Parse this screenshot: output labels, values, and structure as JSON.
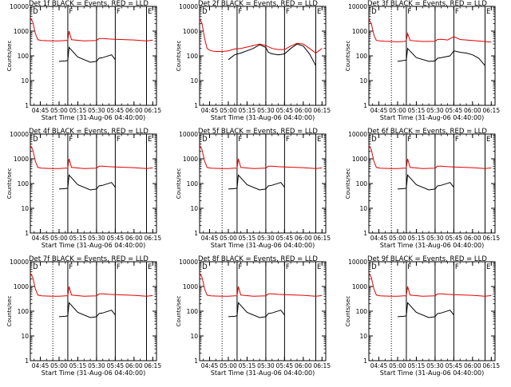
{
  "colors": {
    "events": "#000000",
    "lld": "#e00000",
    "axis": "#000000",
    "background": "#ffffff"
  },
  "chart_data": [
    {
      "type": "line",
      "title": "Det 1f BLACK = Events, RED = LLD",
      "xlabel": "Start Time (31-Aug-06 04:40:00)",
      "ylabel": "Counts/sec",
      "yscale": "log",
      "ylim": [
        1,
        10000
      ],
      "ytick_labels": [
        "1",
        "10",
        "100",
        "1000",
        "10000"
      ],
      "xtick_labels": [
        "04:45",
        "05:00",
        "05:15",
        "05:30",
        "05:45",
        "06:00",
        "06:15"
      ],
      "xlim_minutes": [
        -3,
        98
      ],
      "markers": {
        "dotted": [
          15
        ],
        "solid": [
          27,
          50,
          65,
          90
        ],
        "flags": [
          "D",
          "F",
          "F",
          "E"
        ]
      },
      "series": [
        {
          "name": "BLACK = Events",
          "x": [
            20,
            25,
            27,
            28,
            35,
            45,
            50,
            52,
            55,
            62,
            65
          ],
          "y": [
            60,
            62,
            65,
            220,
            90,
            55,
            60,
            80,
            85,
            110,
            70
          ]
        },
        {
          "name": "RED = LLD",
          "x": [
            -3,
            -1,
            1,
            3,
            6,
            10,
            15,
            20,
            25,
            27,
            28,
            30,
            40,
            50,
            52,
            55,
            60,
            65,
            80,
            90,
            95
          ],
          "y": [
            3500,
            2300,
            800,
            450,
            420,
            410,
            400,
            400,
            420,
            420,
            1000,
            450,
            400,
            420,
            500,
            500,
            480,
            470,
            440,
            400,
            430
          ]
        }
      ]
    },
    {
      "type": "line",
      "title": "Det 2f BLACK = Events, RED = LLD",
      "xlabel": "Start Time (31-Aug-06 04:40:00)",
      "ylabel": "Counts/sec",
      "yscale": "log",
      "ylim": [
        1,
        10000
      ],
      "ytick_labels": [
        "1",
        "10",
        "100",
        "1000",
        "10000"
      ],
      "xtick_labels": [
        "04:45",
        "05:00",
        "05:15",
        "05:30",
        "05:45",
        "06:00",
        "06:15"
      ],
      "xlim_minutes": [
        -3,
        98
      ],
      "markers": {
        "dotted": [
          15
        ],
        "solid": [
          27,
          50,
          65,
          90
        ],
        "flags": [
          "D",
          "F",
          "F",
          "E"
        ]
      },
      "series": [
        {
          "name": "BLACK = Events",
          "x": [
            20,
            25,
            30,
            40,
            45,
            50,
            52,
            55,
            60,
            65,
            70,
            75,
            80,
            85,
            90
          ],
          "y": [
            70,
            110,
            130,
            200,
            280,
            220,
            140,
            120,
            110,
            120,
            200,
            300,
            250,
            120,
            40
          ]
        },
        {
          "name": "RED = LLD",
          "x": [
            -3,
            -1,
            1,
            3,
            6,
            10,
            15,
            20,
            25,
            30,
            40,
            45,
            50,
            55,
            60,
            65,
            70,
            75,
            80,
            85,
            90,
            95
          ],
          "y": [
            3200,
            2000,
            500,
            200,
            160,
            150,
            150,
            160,
            190,
            200,
            260,
            300,
            260,
            200,
            180,
            180,
            250,
            320,
            300,
            200,
            130,
            200
          ]
        }
      ]
    },
    {
      "type": "line",
      "title": "Det 3f BLACK = Events, RED = LLD",
      "xlabel": "Start Time (31-Aug-06 04:40:00)",
      "ylabel": "Counts/sec",
      "yscale": "log",
      "ylim": [
        1,
        10000
      ],
      "ytick_labels": [
        "1",
        "10",
        "100",
        "1000",
        "10000"
      ],
      "xtick_labels": [
        "04:45",
        "05:00",
        "05:15",
        "05:30",
        "05:45",
        "06:00",
        "06:15"
      ],
      "xlim_minutes": [
        -3,
        98
      ],
      "markers": {
        "dotted": [
          15
        ],
        "solid": [
          27,
          50,
          65,
          90
        ],
        "flags": [
          "D",
          "F",
          "F",
          "E"
        ]
      },
      "series": [
        {
          "name": "BLACK = Events",
          "x": [
            20,
            25,
            27,
            28,
            35,
            45,
            50,
            52,
            55,
            62,
            65,
            70,
            75,
            80,
            85,
            90
          ],
          "y": [
            60,
            65,
            68,
            200,
            85,
            60,
            62,
            80,
            85,
            100,
            160,
            140,
            130,
            110,
            80,
            40
          ]
        },
        {
          "name": "RED = LLD",
          "x": [
            -3,
            -1,
            1,
            3,
            6,
            10,
            15,
            20,
            25,
            27,
            28,
            30,
            40,
            50,
            52,
            55,
            60,
            65,
            70,
            80,
            90,
            95
          ],
          "y": [
            3000,
            2000,
            700,
            420,
            400,
            390,
            380,
            370,
            380,
            400,
            800,
            420,
            380,
            390,
            460,
            470,
            440,
            600,
            460,
            420,
            380,
            360
          ]
        }
      ]
    },
    {
      "type": "line",
      "title": "Det 4f BLACK = Events, RED = LLD",
      "xlabel": "Start Time (31-Aug-06 04:40:00)",
      "ylabel": "Counts/sec",
      "yscale": "log",
      "ylim": [
        1,
        10000
      ],
      "ytick_labels": [
        "1",
        "10",
        "100",
        "1000",
        "10000"
      ],
      "xtick_labels": [
        "04:45",
        "05:00",
        "05:15",
        "05:30",
        "05:45",
        "06:00",
        "06:15"
      ],
      "xlim_minutes": [
        -3,
        98
      ],
      "markers": {
        "dotted": [
          15
        ],
        "solid": [
          27,
          50,
          65,
          90
        ],
        "flags": [
          "D",
          "F",
          "F",
          "E"
        ]
      },
      "series": [
        {
          "name": "BLACK = Events",
          "x": [
            20,
            25,
            27,
            28,
            35,
            45,
            50,
            52,
            55,
            62,
            65
          ],
          "y": [
            60,
            62,
            65,
            220,
            90,
            55,
            60,
            80,
            85,
            110,
            70
          ]
        },
        {
          "name": "RED = LLD",
          "x": [
            -3,
            -1,
            1,
            3,
            6,
            10,
            15,
            20,
            25,
            27,
            28,
            30,
            40,
            50,
            52,
            55,
            60,
            65,
            80,
            90,
            95
          ],
          "y": [
            3500,
            2300,
            800,
            450,
            420,
            410,
            400,
            400,
            420,
            420,
            1000,
            450,
            400,
            420,
            500,
            500,
            480,
            470,
            440,
            400,
            430
          ]
        }
      ]
    },
    {
      "type": "line",
      "title": "Det 5f BLACK = Events, RED = LLD",
      "xlabel": "Start Time (31-Aug-06 04:40:00)",
      "ylabel": "Counts/sec",
      "yscale": "log",
      "ylim": [
        1,
        10000
      ],
      "ytick_labels": [
        "1",
        "10",
        "100",
        "1000",
        "10000"
      ],
      "xtick_labels": [
        "04:45",
        "05:00",
        "05:15",
        "05:30",
        "05:45",
        "06:00",
        "06:15"
      ],
      "xlim_minutes": [
        -3,
        98
      ],
      "markers": {
        "dotted": [
          15
        ],
        "solid": [
          27,
          50,
          65,
          90
        ],
        "flags": [
          "D",
          "F",
          "F",
          "E"
        ]
      },
      "series": [
        {
          "name": "BLACK = Events",
          "x": [
            20,
            25,
            27,
            28,
            35,
            45,
            50,
            52,
            55,
            62,
            65
          ],
          "y": [
            60,
            62,
            65,
            220,
            90,
            55,
            60,
            80,
            85,
            110,
            70
          ]
        },
        {
          "name": "RED = LLD",
          "x": [
            -3,
            -1,
            1,
            3,
            6,
            10,
            15,
            20,
            25,
            27,
            28,
            30,
            40,
            50,
            52,
            55,
            60,
            65,
            80,
            90,
            95
          ],
          "y": [
            3500,
            2300,
            800,
            450,
            420,
            410,
            400,
            400,
            420,
            420,
            1000,
            450,
            400,
            420,
            500,
            500,
            480,
            470,
            440,
            400,
            430
          ]
        }
      ]
    },
    {
      "type": "line",
      "title": "Det 6f BLACK = Events, RED = LLD",
      "xlabel": "Start Time (31-Aug-06 04:40:00)",
      "ylabel": "Counts/sec",
      "yscale": "log",
      "ylim": [
        1,
        10000
      ],
      "ytick_labels": [
        "1",
        "10",
        "100",
        "1000",
        "10000"
      ],
      "xtick_labels": [
        "04:45",
        "05:00",
        "05:15",
        "05:30",
        "05:45",
        "06:00",
        "06:15"
      ],
      "xlim_minutes": [
        -3,
        98
      ],
      "markers": {
        "dotted": [
          15
        ],
        "solid": [
          27,
          50,
          65,
          90
        ],
        "flags": [
          "D",
          "F",
          "F",
          "E"
        ]
      },
      "series": [
        {
          "name": "BLACK = Events",
          "x": [
            20,
            25,
            27,
            28,
            35,
            45,
            50,
            52,
            55,
            62,
            65
          ],
          "y": [
            60,
            62,
            65,
            220,
            90,
            55,
            60,
            80,
            85,
            110,
            70
          ]
        },
        {
          "name": "RED = LLD",
          "x": [
            -3,
            -1,
            1,
            3,
            6,
            10,
            15,
            20,
            25,
            27,
            28,
            30,
            40,
            50,
            52,
            55,
            60,
            65,
            80,
            90,
            95
          ],
          "y": [
            3500,
            2300,
            800,
            450,
            420,
            410,
            400,
            400,
            420,
            420,
            1000,
            450,
            400,
            420,
            500,
            500,
            480,
            470,
            440,
            400,
            430
          ]
        }
      ]
    },
    {
      "type": "line",
      "title": "Det 7f BLACK = Events, RED = LLD",
      "xlabel": "Start Time (31-Aug-06 04:40:00)",
      "ylabel": "Counts/sec",
      "yscale": "log",
      "ylim": [
        1,
        10000
      ],
      "ytick_labels": [
        "1",
        "10",
        "100",
        "1000",
        "10000"
      ],
      "xtick_labels": [
        "04:45",
        "05:00",
        "05:15",
        "05:30",
        "05:45",
        "06:00",
        "06:15"
      ],
      "xlim_minutes": [
        -3,
        98
      ],
      "markers": {
        "dotted": [
          15
        ],
        "solid": [
          27,
          50,
          65,
          90
        ],
        "flags": [
          "D",
          "F",
          "F",
          "E"
        ]
      },
      "series": [
        {
          "name": "BLACK = Events",
          "x": [
            20,
            25,
            27,
            28,
            35,
            45,
            50,
            52,
            55,
            62,
            65
          ],
          "y": [
            60,
            62,
            65,
            220,
            90,
            55,
            60,
            80,
            85,
            110,
            70
          ]
        },
        {
          "name": "RED = LLD",
          "x": [
            -3,
            -1,
            1,
            3,
            6,
            10,
            15,
            20,
            25,
            27,
            28,
            30,
            40,
            50,
            52,
            55,
            60,
            65,
            80,
            90,
            95
          ],
          "y": [
            3500,
            2300,
            800,
            450,
            420,
            410,
            400,
            400,
            420,
            420,
            1000,
            450,
            400,
            420,
            500,
            500,
            480,
            470,
            440,
            400,
            430
          ]
        }
      ]
    },
    {
      "type": "line",
      "title": "Det 8f BLACK = Events, RED = LLD",
      "xlabel": "Start Time (31-Aug-06 04:40:00)",
      "ylabel": "Counts/sec",
      "yscale": "log",
      "ylim": [
        1,
        10000
      ],
      "ytick_labels": [
        "1",
        "10",
        "100",
        "1000",
        "10000"
      ],
      "xtick_labels": [
        "04:45",
        "05:00",
        "05:15",
        "05:30",
        "05:45",
        "06:00",
        "06:15"
      ],
      "xlim_minutes": [
        -3,
        98
      ],
      "markers": {
        "dotted": [
          15
        ],
        "solid": [
          27,
          50,
          65,
          90
        ],
        "flags": [
          "D",
          "F",
          "F",
          "E"
        ]
      },
      "series": [
        {
          "name": "BLACK = Events",
          "x": [
            20,
            25,
            27,
            28,
            35,
            45,
            50,
            52,
            55,
            62,
            65
          ],
          "y": [
            60,
            62,
            65,
            220,
            90,
            55,
            60,
            80,
            85,
            110,
            70
          ]
        },
        {
          "name": "RED = LLD",
          "x": [
            -3,
            -1,
            1,
            3,
            6,
            10,
            15,
            20,
            25,
            27,
            28,
            30,
            40,
            50,
            52,
            55,
            60,
            65,
            80,
            90,
            95
          ],
          "y": [
            3500,
            2300,
            800,
            450,
            420,
            410,
            400,
            400,
            420,
            420,
            1000,
            450,
            400,
            420,
            500,
            500,
            480,
            470,
            440,
            400,
            430
          ]
        }
      ]
    },
    {
      "type": "line",
      "title": "Det 9f BLACK = Events, RED = LLD",
      "xlabel": "Start Time (31-Aug-06 04:40:00)",
      "ylabel": "Counts/sec",
      "yscale": "log",
      "ylim": [
        1,
        10000
      ],
      "ytick_labels": [
        "1",
        "10",
        "100",
        "1000",
        "10000"
      ],
      "xtick_labels": [
        "04:45",
        "05:00",
        "05:15",
        "05:30",
        "05:45",
        "06:00",
        "06:15"
      ],
      "xlim_minutes": [
        -3,
        98
      ],
      "markers": {
        "dotted": [
          15
        ],
        "solid": [
          27,
          50,
          65,
          90
        ],
        "flags": [
          "D",
          "F",
          "F",
          "E"
        ]
      },
      "series": [
        {
          "name": "BLACK = Events",
          "x": [
            20,
            25,
            27,
            28,
            35,
            45,
            50,
            52,
            55,
            62,
            65
          ],
          "y": [
            60,
            62,
            65,
            220,
            90,
            55,
            60,
            80,
            85,
            110,
            70
          ]
        },
        {
          "name": "RED = LLD",
          "x": [
            -3,
            -1,
            1,
            3,
            6,
            10,
            15,
            20,
            25,
            27,
            28,
            30,
            40,
            50,
            52,
            55,
            60,
            65,
            80,
            90,
            95
          ],
          "y": [
            3500,
            2300,
            800,
            450,
            420,
            410,
            400,
            400,
            420,
            420,
            1000,
            450,
            400,
            420,
            500,
            500,
            480,
            470,
            440,
            400,
            430
          ]
        }
      ]
    }
  ]
}
